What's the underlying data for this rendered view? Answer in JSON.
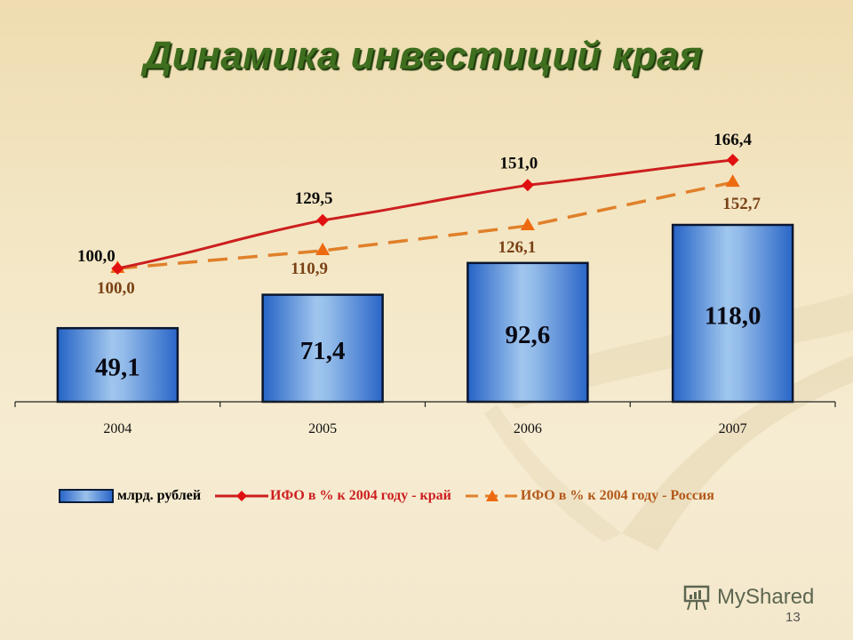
{
  "slide": {
    "title": "Динамика инвестиций края",
    "page_number": "13",
    "watermark": "MyShared"
  },
  "colors": {
    "bar": "#2a66c8",
    "bar_light": "#9cc2ec",
    "line_kray": "#cc1f1f",
    "marker_kray": "#e01010",
    "line_russia": "#e0802a",
    "marker_russia": "#ee6a10",
    "label_russia": "#7a4216",
    "title": "#3e6e1e"
  },
  "legend": {
    "items": [
      {
        "label": "млрд. рублей",
        "type": "bar"
      },
      {
        "label": "ИФО в %  к 2004 году - край",
        "type": "line-diamond"
      },
      {
        "label": "ИФО в %  к 2004 году - Россия",
        "type": "dashed-triangle"
      }
    ]
  },
  "chart_data": {
    "type": "bar",
    "title": "Динамика инвестиций края",
    "categories": [
      "2004",
      "2005",
      "2006",
      "2007"
    ],
    "series": [
      {
        "name": "млрд. рублей",
        "type": "bar",
        "values": [
          49.1,
          71.4,
          92.6,
          118.0
        ],
        "labels": [
          "49,1",
          "71,4",
          "92,6",
          "118,0"
        ]
      },
      {
        "name": "ИФО в %  к 2004 году - край",
        "type": "line",
        "marker": "diamond",
        "values": [
          100.0,
          129.5,
          151.0,
          166.4
        ],
        "labels": [
          "100,0",
          "129,5",
          "151,0",
          "166,4"
        ]
      },
      {
        "name": "ИФО в %  к 2004 году - Россия",
        "type": "line",
        "style": "dashed",
        "marker": "triangle",
        "values": [
          100.0,
          110.9,
          126.1,
          152.7
        ],
        "labels": [
          "100,0",
          "110,9",
          "126,1",
          "152,7"
        ]
      }
    ],
    "xlabel": "",
    "ylabel": "",
    "grid": false,
    "legend_position": "bottom"
  }
}
